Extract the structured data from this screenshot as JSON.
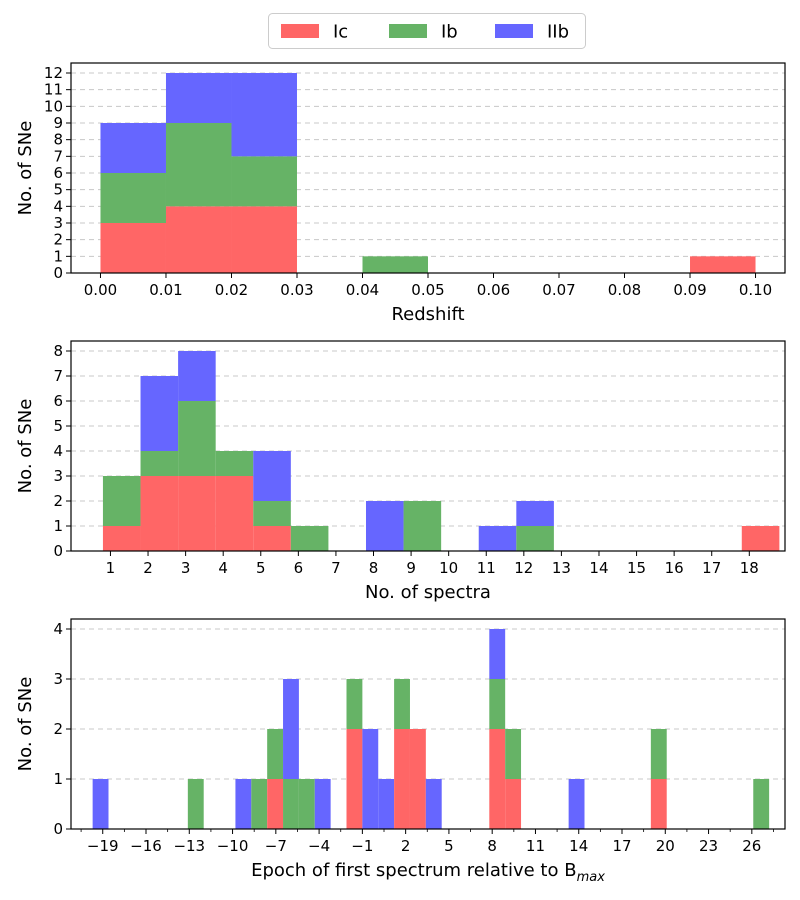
{
  "legend": {
    "entries": [
      {
        "label": "Ic",
        "color": "#ff6666"
      },
      {
        "label": "Ib",
        "color": "#66b366"
      },
      {
        "label": "IIb",
        "color": "#6666ff"
      }
    ]
  },
  "chart_data": [
    {
      "type": "bar",
      "stacked": true,
      "title": "",
      "xlabel": "Redshift",
      "ylabel": "No. of SNe",
      "xlim": [
        -0.0045,
        0.1045
      ],
      "ylim": [
        0,
        12.6
      ],
      "xticks": [
        0.0,
        0.01,
        0.02,
        0.03,
        0.04,
        0.05,
        0.06,
        0.07,
        0.08,
        0.09,
        0.1
      ],
      "xtick_labels": [
        "0.00",
        "0.01",
        "0.02",
        "0.03",
        "0.04",
        "0.05",
        "0.06",
        "0.07",
        "0.08",
        "0.09",
        "0.10"
      ],
      "yticks": [
        0,
        1,
        2,
        3,
        4,
        5,
        6,
        7,
        8,
        9,
        10,
        11,
        12
      ],
      "ytick_labels": [
        "0",
        "1",
        "2",
        "3",
        "4",
        "5",
        "6",
        "7",
        "8",
        "9",
        "10",
        "11",
        "12"
      ],
      "grid": "y",
      "bin_width": 0.01,
      "bins": [
        0.0,
        0.01,
        0.02,
        0.04,
        0.09
      ],
      "series": [
        {
          "name": "Ic",
          "values": [
            3,
            4,
            4,
            0,
            1
          ]
        },
        {
          "name": "Ib",
          "values": [
            3,
            5,
            3,
            1,
            0
          ]
        },
        {
          "name": "IIb",
          "values": [
            3,
            3,
            5,
            0,
            0
          ]
        }
      ]
    },
    {
      "type": "bar",
      "stacked": true,
      "title": "",
      "xlabel": "No. of spectra",
      "ylabel": "No. of SNe",
      "xlim": [
        -0.05,
        18.95
      ],
      "ylim": [
        0,
        8.4
      ],
      "xticks": [
        1,
        2,
        3,
        4,
        5,
        6,
        7,
        8,
        9,
        10,
        11,
        12,
        13,
        14,
        15,
        16,
        17,
        18
      ],
      "xtick_labels": [
        "1",
        "2",
        "3",
        "4",
        "5",
        "6",
        "7",
        "8",
        "9",
        "10",
        "11",
        "12",
        "13",
        "14",
        "15",
        "16",
        "17",
        "18"
      ],
      "yticks": [
        0,
        1,
        2,
        3,
        4,
        5,
        6,
        7,
        8
      ],
      "ytick_labels": [
        "0",
        "1",
        "2",
        "3",
        "4",
        "5",
        "6",
        "7",
        "8"
      ],
      "grid": "y",
      "bin_width": 1,
      "bins": [
        0.8,
        1.8,
        2.8,
        3.8,
        4.8,
        5.8,
        7.8,
        8.8,
        10.8,
        11.8,
        17.8
      ],
      "series": [
        {
          "name": "Ic",
          "values": [
            1,
            3,
            3,
            3,
            1,
            0,
            0,
            0,
            0,
            0,
            1
          ]
        },
        {
          "name": "Ib",
          "values": [
            2,
            1,
            3,
            1,
            1,
            1,
            0,
            2,
            0,
            1,
            0
          ]
        },
        {
          "name": "IIb",
          "values": [
            0,
            3,
            2,
            0,
            2,
            0,
            2,
            0,
            1,
            1,
            0
          ]
        }
      ]
    },
    {
      "type": "bar",
      "stacked": true,
      "title": "",
      "xlabel": "Epoch of first spectrum relative to B",
      "xlabel_sub": "max",
      "ylabel": "No. of SNe",
      "xlim": [
        -21.2,
        28.3
      ],
      "ylim": [
        0,
        4.2
      ],
      "xticks": [
        -19,
        -16,
        -13,
        -10,
        -7,
        -4,
        -1,
        2,
        5,
        8,
        11,
        14,
        17,
        20,
        23,
        26
      ],
      "xtick_labels": [
        "−19",
        "−16",
        "−13",
        "−10",
        "−7",
        "−4",
        "−1",
        "2",
        "5",
        "8",
        "11",
        "14",
        "17",
        "20",
        "23",
        "26"
      ],
      "minor_xticks": [
        -20.5,
        -17.5,
        -14.5,
        -11.5,
        -8.5,
        -5.5,
        -2.5,
        0.5,
        3.5,
        6.5,
        9.5,
        12.5,
        15.5,
        18.5,
        21.5,
        24.5,
        27.5
      ],
      "yticks": [
        0,
        1,
        2,
        3,
        4
      ],
      "ytick_labels": [
        "0",
        "1",
        "2",
        "3",
        "4"
      ],
      "grid": "y",
      "bin_width": 1.1,
      "bins": [
        -19.7,
        -13.1,
        -9.8,
        -8.7,
        -7.6,
        -6.5,
        -5.4,
        -4.3,
        -2.1,
        -1.0,
        0.1,
        1.2,
        2.3,
        3.4,
        7.8,
        8.9,
        13.3,
        19.0,
        26.1
      ],
      "series": [
        {
          "name": "Ic",
          "values": [
            0,
            0,
            0,
            0,
            1,
            0,
            0,
            0,
            2,
            0,
            0,
            2,
            2,
            0,
            2,
            1,
            0,
            1,
            0
          ]
        },
        {
          "name": "Ib",
          "values": [
            0,
            1,
            0,
            1,
            1,
            1,
            1,
            0,
            1,
            0,
            0,
            1,
            0,
            0,
            1,
            1,
            0,
            1,
            1
          ]
        },
        {
          "name": "IIb",
          "values": [
            1,
            0,
            1,
            0,
            0,
            2,
            0,
            1,
            0,
            2,
            1,
            0,
            0,
            1,
            1,
            0,
            1,
            0,
            0
          ]
        }
      ]
    }
  ]
}
